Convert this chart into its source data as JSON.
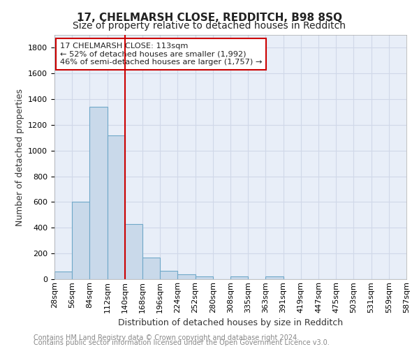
{
  "title1": "17, CHELMARSH CLOSE, REDDITCH, B98 8SQ",
  "title2": "Size of property relative to detached houses in Redditch",
  "xlabel": "Distribution of detached houses by size in Redditch",
  "ylabel": "Number of detached properties",
  "footnote1": "Contains HM Land Registry data © Crown copyright and database right 2024.",
  "footnote2": "Contains public sector information licensed under the Open Government Licence v3.0.",
  "bin_labels": [
    "28sqm",
    "56sqm",
    "84sqm",
    "112sqm",
    "140sqm",
    "168sqm",
    "196sqm",
    "224sqm",
    "252sqm",
    "280sqm",
    "308sqm",
    "335sqm",
    "363sqm",
    "391sqm",
    "419sqm",
    "447sqm",
    "475sqm",
    "503sqm",
    "531sqm",
    "559sqm",
    "587sqm"
  ],
  "bar_values": [
    60,
    600,
    1340,
    1120,
    430,
    170,
    65,
    40,
    20,
    0,
    20,
    0,
    20,
    0,
    0,
    0,
    0,
    0,
    0,
    0
  ],
  "bar_color": "#c9d9ea",
  "bar_edge_color": "#6fa8c8",
  "bar_edge_width": 0.8,
  "vline_x": 4.0,
  "vline_color": "#cc0000",
  "annotation_text": "17 CHELMARSH CLOSE: 113sqm\n← 52% of detached houses are smaller (1,992)\n46% of semi-detached houses are larger (1,757) →",
  "annotation_box_color": "#ffffff",
  "annotation_box_edge": "#cc0000",
  "ylim": [
    0,
    1900
  ],
  "yticks": [
    0,
    200,
    400,
    600,
    800,
    1000,
    1200,
    1400,
    1600,
    1800
  ],
  "grid_color": "#d0d8e8",
  "bg_color": "#e8eef8",
  "title1_fontsize": 11,
  "title2_fontsize": 10,
  "annot_fontsize": 8.2,
  "xlabel_fontsize": 9,
  "ylabel_fontsize": 9,
  "tick_fontsize": 8,
  "footnote_fontsize": 7
}
